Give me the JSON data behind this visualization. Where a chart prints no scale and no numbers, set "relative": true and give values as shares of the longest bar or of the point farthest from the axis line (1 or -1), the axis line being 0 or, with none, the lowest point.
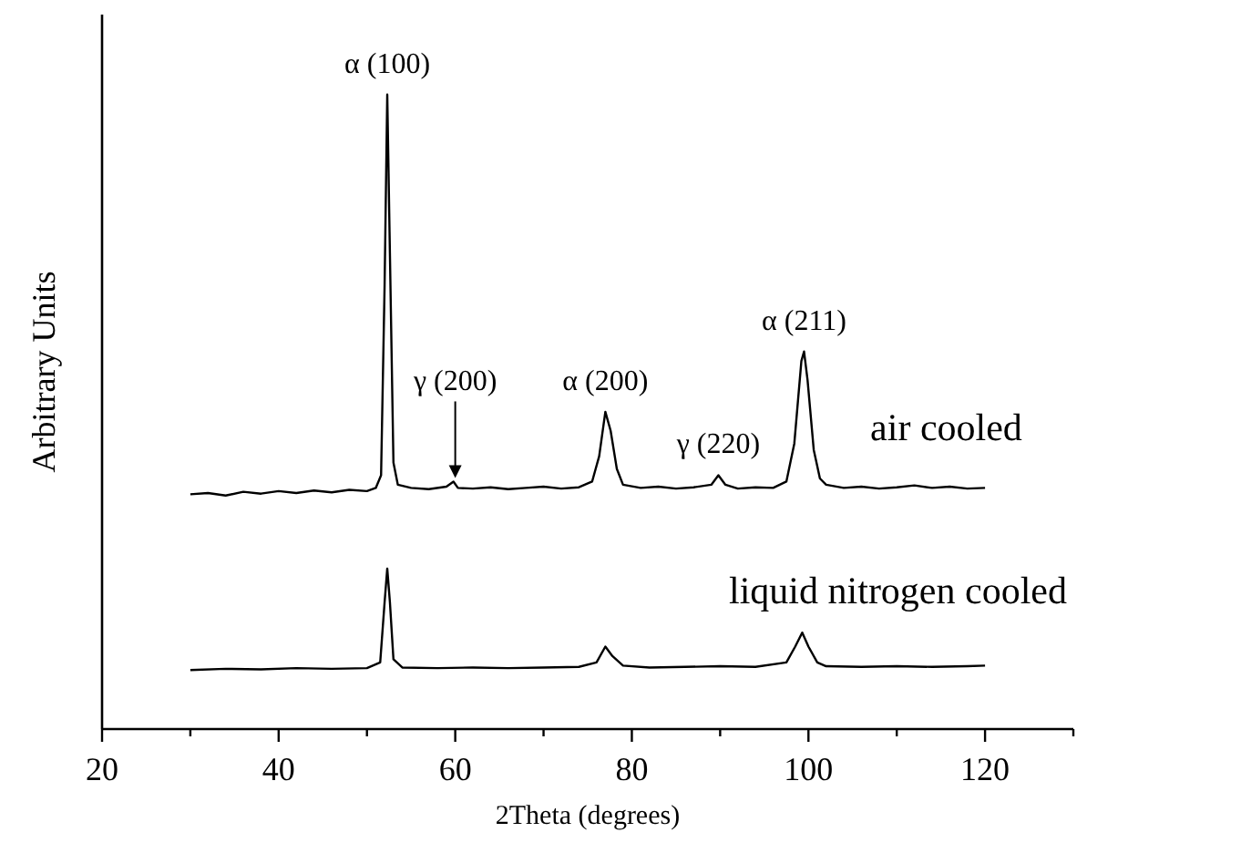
{
  "chart_data": {
    "type": "line",
    "relative": true,
    "xlabel": "2Theta (degrees)",
    "ylabel": "Arbitrary Units",
    "xlim": [
      20,
      130
    ],
    "xticks": [
      20,
      {
        "value": 30,
        "label": null
      },
      40,
      {
        "value": 50,
        "label": null
      },
      60,
      {
        "value": 70,
        "label": null
      },
      80,
      {
        "value": 90,
        "label": null
      },
      100,
      {
        "value": 110,
        "label": null
      },
      120,
      {
        "value": 130,
        "label": null
      }
    ],
    "grid": false,
    "marker": "none",
    "line_style": "solid",
    "series": [
      {
        "name": "air cooled",
        "color": "#000000",
        "x": [
          30,
          32,
          34,
          36,
          38,
          40,
          42,
          44,
          46,
          48,
          50,
          51,
          51.6,
          52,
          52.3,
          52.6,
          53,
          53.5,
          55,
          57,
          59,
          59.8,
          60.3,
          62,
          64,
          66,
          68,
          70,
          72,
          74,
          75.5,
          76.3,
          77,
          77.6,
          78.3,
          79,
          81,
          83,
          85,
          87,
          89,
          89.8,
          90.6,
          92,
          94,
          96,
          97.5,
          98.4,
          99.2,
          99.5,
          99.9,
          100.6,
          101.3,
          102,
          104,
          106,
          108,
          110,
          112,
          114,
          116,
          118,
          120
        ],
        "values": [
          0.37,
          0.372,
          0.368,
          0.374,
          0.371,
          0.375,
          0.372,
          0.376,
          0.373,
          0.377,
          0.375,
          0.38,
          0.4,
          0.7,
          1,
          0.75,
          0.42,
          0.385,
          0.38,
          0.378,
          0.382,
          0.39,
          0.38,
          0.379,
          0.381,
          0.378,
          0.38,
          0.382,
          0.379,
          0.381,
          0.39,
          0.43,
          0.5,
          0.47,
          0.41,
          0.385,
          0.38,
          0.382,
          0.379,
          0.381,
          0.385,
          0.4,
          0.385,
          0.379,
          0.381,
          0.38,
          0.39,
          0.45,
          0.58,
          0.595,
          0.55,
          0.44,
          0.395,
          0.385,
          0.38,
          0.382,
          0.379,
          0.381,
          0.384,
          0.38,
          0.382,
          0.379,
          0.38
        ]
      },
      {
        "name": "liquid nitrogen cooled",
        "color": "#000000",
        "x": [
          30,
          34,
          38,
          42,
          46,
          50,
          51.5,
          52,
          52.3,
          52.6,
          53,
          54,
          58,
          62,
          66,
          70,
          74,
          76,
          77,
          77.8,
          79,
          82,
          86,
          90,
          94,
          97.5,
          98.5,
          99.3,
          100,
          101,
          102,
          106,
          110,
          114,
          118,
          120
        ],
        "values": [
          0.093,
          0.095,
          0.094,
          0.096,
          0.095,
          0.096,
          0.105,
          0.2,
          0.253,
          0.2,
          0.11,
          0.097,
          0.096,
          0.097,
          0.096,
          0.097,
          0.098,
          0.105,
          0.13,
          0.115,
          0.1,
          0.097,
          0.098,
          0.099,
          0.098,
          0.105,
          0.13,
          0.152,
          0.13,
          0.105,
          0.099,
          0.098,
          0.099,
          0.098,
          0.099,
          0.1
        ]
      }
    ],
    "annotations": [
      {
        "text": "α (100)",
        "x": 52.3,
        "y": 1
      },
      {
        "text": "γ (200)",
        "x": 60,
        "y": 0.39
      },
      {
        "text": "α (200)",
        "x": 77,
        "y": 0.5
      },
      {
        "text": "γ (220)",
        "x": 89.8,
        "y": 0.4
      },
      {
        "text": "α (211)",
        "x": 99.5,
        "y": 0.595
      }
    ]
  }
}
